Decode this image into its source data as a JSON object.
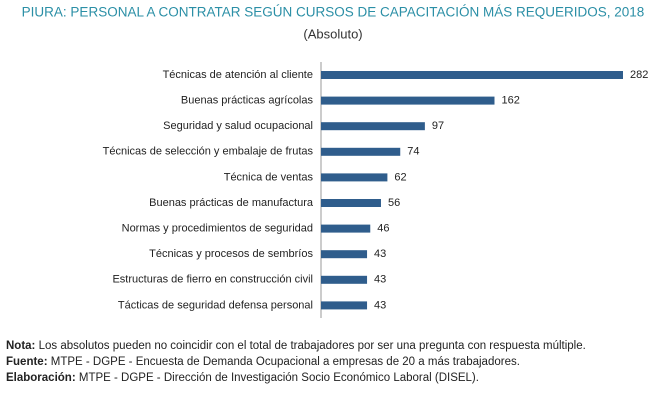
{
  "chart_data": {
    "type": "barh",
    "title": "PIURA: PERSONAL A CONTRATAR SEGÚN CURSOS DE CAPACITACIÓN MÁS REQUERIDOS, 2018",
    "subtitle": "(Absoluto)",
    "categories": [
      "Técnicas de atención al cliente",
      "Buenas prácticas agrícolas",
      "Seguridad y salud ocupacional",
      "Técnicas de selección y embalaje de frutas",
      "Técnica de  ventas",
      "Buenas prácticas de manufactura",
      "Normas y procedimientos de seguridad",
      "Técnicas y procesos de sembríos",
      "Estructuras de fierro en construcción civil",
      "Tácticas de seguridad defensa personal"
    ],
    "values": [
      282,
      162,
      97,
      74,
      62,
      56,
      46,
      43,
      43,
      43
    ],
    "color": "#2f5d8c"
  },
  "notes": [
    {
      "label": "Nota:",
      "text": "Los absolutos pueden no coincidir con el total de trabajadores por ser una pregunta con respuesta múltiple."
    },
    {
      "label": "Fuente:",
      "text": "MTPE - DGPE - Encuesta de Demanda Ocupacional a empresas de 20 a más trabajadores."
    },
    {
      "label": "Elaboración:",
      "text": "MTPE - DGPE - Dirección de Investigación Socio Económico Laboral (DISEL)."
    }
  ]
}
